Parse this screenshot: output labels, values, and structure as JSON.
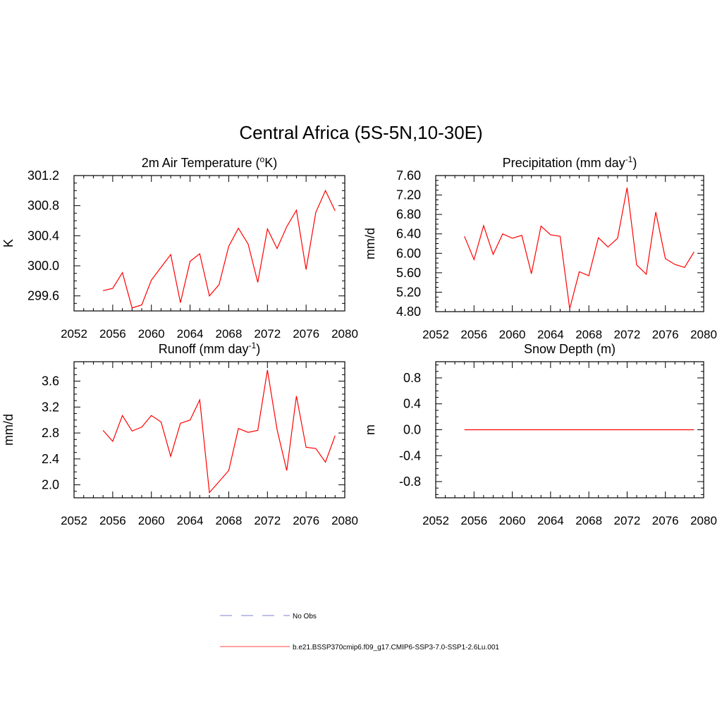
{
  "figure": {
    "title": "Central Africa (5S-5N,10-30E)"
  },
  "legend": {
    "items": [
      {
        "label": "No Obs",
        "color": "#9999dd",
        "dash": true
      },
      {
        "label": "b.e21.BSSP370cmip6.f09_g17.CMIP6-SSP3-7.0-SSP1-2.6Lu.001",
        "color": "#ff6a6a",
        "dash": false
      }
    ]
  },
  "chart_data": [
    {
      "type": "line",
      "title": "2m Air Temperature (°K)",
      "title_parts": {
        "pre": "2m Air Temperature (",
        "sup": "o",
        "post": "K)"
      },
      "ylabel": "K",
      "xlim": [
        2052,
        2080
      ],
      "ylim": [
        299.4,
        301.2
      ],
      "xticks": [
        2052,
        2056,
        2060,
        2064,
        2068,
        2072,
        2076,
        2080
      ],
      "yticks": [
        299.6,
        300.0,
        300.4,
        300.8,
        301.2
      ],
      "ytick_labels": [
        "299.6",
        "300.0",
        "300.4",
        "300.8",
        "301.2"
      ],
      "series": [
        {
          "color": "#ff0000",
          "x": [
            2055,
            2056,
            2057,
            2058,
            2059,
            2060,
            2061,
            2062,
            2063,
            2064,
            2065,
            2066,
            2067,
            2068,
            2069,
            2070,
            2071,
            2072,
            2073,
            2074,
            2075,
            2076,
            2077,
            2078,
            2079
          ],
          "values": [
            299.67,
            299.7,
            299.91,
            299.44,
            299.48,
            299.81,
            299.98,
            300.15,
            299.51,
            300.06,
            300.16,
            299.6,
            299.75,
            300.26,
            300.5,
            300.29,
            299.78,
            300.49,
            300.23,
            300.52,
            300.74,
            299.95,
            300.71,
            301.0,
            300.73
          ]
        }
      ]
    },
    {
      "type": "line",
      "title": "Precipitation (mm day-1)",
      "title_parts": {
        "pre": "Precipitation (mm day",
        "sup": "-1",
        "post": ")"
      },
      "ylabel": "mm/d",
      "xlim": [
        2052,
        2080
      ],
      "ylim": [
        4.8,
        7.6
      ],
      "xticks": [
        2052,
        2056,
        2060,
        2064,
        2068,
        2072,
        2076,
        2080
      ],
      "yticks": [
        4.8,
        5.2,
        5.6,
        6.0,
        6.4,
        6.8,
        7.2,
        7.6
      ],
      "ytick_labels": [
        "4.80",
        "5.20",
        "5.60",
        "6.00",
        "6.40",
        "6.80",
        "7.20",
        "7.60"
      ],
      "series": [
        {
          "color": "#ff0000",
          "x": [
            2055,
            2056,
            2057,
            2058,
            2059,
            2060,
            2061,
            2062,
            2063,
            2064,
            2065,
            2066,
            2067,
            2068,
            2069,
            2070,
            2071,
            2072,
            2073,
            2074,
            2075,
            2076,
            2077,
            2078,
            2079
          ],
          "values": [
            6.35,
            5.87,
            6.57,
            5.98,
            6.4,
            6.31,
            6.37,
            5.58,
            6.56,
            6.38,
            6.35,
            4.86,
            5.62,
            5.54,
            6.32,
            6.13,
            6.31,
            7.35,
            5.76,
            5.57,
            6.85,
            5.89,
            5.77,
            5.71,
            6.03
          ]
        }
      ]
    },
    {
      "type": "line",
      "title": "Runoff (mm day-1)",
      "title_parts": {
        "pre": "Runoff (mm day",
        "sup": "-1",
        "post": ")"
      },
      "ylabel": "mm/d",
      "xlim": [
        2052,
        2080
      ],
      "ylim": [
        1.8,
        3.9
      ],
      "xticks": [
        2052,
        2056,
        2060,
        2064,
        2068,
        2072,
        2076,
        2080
      ],
      "yticks": [
        2.0,
        2.4,
        2.8,
        3.2,
        3.6
      ],
      "ytick_labels": [
        "2.0",
        "2.4",
        "2.8",
        "3.2",
        "3.6"
      ],
      "series": [
        {
          "color": "#ff0000",
          "x": [
            2055,
            2056,
            2057,
            2058,
            2059,
            2060,
            2061,
            2062,
            2063,
            2064,
            2065,
            2066,
            2067,
            2068,
            2069,
            2070,
            2071,
            2072,
            2073,
            2074,
            2075,
            2076,
            2077,
            2078,
            2079
          ],
          "values": [
            2.84,
            2.67,
            3.07,
            2.83,
            2.89,
            3.07,
            2.97,
            2.44,
            2.95,
            3.0,
            3.31,
            1.88,
            2.05,
            2.22,
            2.87,
            2.81,
            2.84,
            3.77,
            2.85,
            2.22,
            3.37,
            2.58,
            2.56,
            2.35,
            2.76
          ]
        }
      ]
    },
    {
      "type": "line",
      "title": "Snow Depth (m)",
      "title_parts": {
        "pre": "Snow Depth (m)",
        "sup": "",
        "post": ""
      },
      "ylabel": "m",
      "xlim": [
        2052,
        2080
      ],
      "ylim": [
        -1.05,
        1.05
      ],
      "xticks": [
        2052,
        2056,
        2060,
        2064,
        2068,
        2072,
        2076,
        2080
      ],
      "yticks": [
        -0.8,
        -0.4,
        0.0,
        0.4,
        0.8
      ],
      "ytick_labels": [
        "-0.8",
        "-0.4",
        "0.0",
        "0.4",
        "0.8"
      ],
      "series": [
        {
          "color": "#ff0000",
          "x": [
            2055,
            2079
          ],
          "values": [
            0.0,
            0.0
          ]
        }
      ]
    }
  ]
}
